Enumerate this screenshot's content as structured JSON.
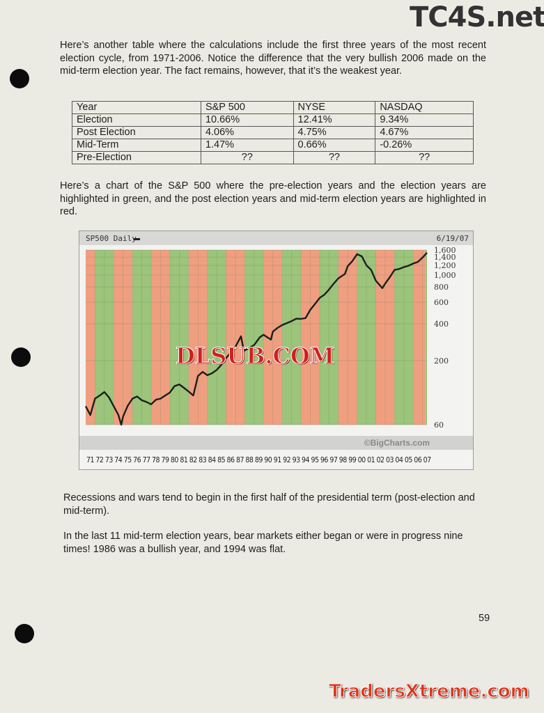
{
  "intro_paragraph": "Here’s another table where the calculations include the first three years of the most recent election cycle, from 1971-2006.  Notice the difference that the very bullish 2006 made on the mid-term election year.  The fact remains, however, that it’s the weakest year.",
  "table": {
    "headers": [
      "Year",
      "S&P 500",
      "NYSE",
      "NASDAQ"
    ],
    "rows": [
      [
        "Election",
        "10.66%",
        "12.41%",
        "9.34%"
      ],
      [
        "Post Election",
        "4.06%",
        "4.75%",
        "4.67%"
      ],
      [
        "Mid-Term",
        "1.47%",
        "0.66%",
        "-0.26%"
      ],
      [
        "Pre-Election",
        "??",
        "??",
        "??"
      ]
    ]
  },
  "chart_intro": "Here’s a chart of the S&P 500 where the pre-election years and the election years are highlighted in green, and the post election years and mid-term election years are highlighted in red.",
  "chart_data": {
    "type": "line",
    "title": "SP500 Daily",
    "date_label": "6/19/07",
    "source": "©BigCharts.com",
    "y_scale": "log",
    "ylim": [
      60,
      1600
    ],
    "y_ticks": [
      "1,600",
      "1,400",
      "1,200",
      "1,000",
      "800",
      "600",
      "400",
      "200",
      "60"
    ],
    "y_tick_values": [
      1600,
      1400,
      1200,
      1000,
      800,
      600,
      400,
      200,
      60
    ],
    "x_tick_labels": [
      "71",
      "72",
      "73",
      "74",
      "75",
      "76",
      "77",
      "78",
      "79",
      "80",
      "81",
      "82",
      "83",
      "84",
      "85",
      "86",
      "87",
      "88",
      "89",
      "90",
      "91",
      "92",
      "93",
      "94",
      "95",
      "96",
      "97",
      "98",
      "99",
      "00",
      "01",
      "02",
      "03",
      "04",
      "05",
      "06",
      "07"
    ],
    "xlim": [
      1971,
      2007.47
    ],
    "grid": true,
    "band_colors": {
      "red": "#ef9f7f",
      "green": "#9cc47a"
    },
    "bands": [
      {
        "start": 1971,
        "end": 1972,
        "color": "red"
      },
      {
        "start": 1972,
        "end": 1974,
        "color": "green"
      },
      {
        "start": 1974,
        "end": 1976,
        "color": "red"
      },
      {
        "start": 1976,
        "end": 1978,
        "color": "green"
      },
      {
        "start": 1978,
        "end": 1980,
        "color": "red"
      },
      {
        "start": 1980,
        "end": 1982,
        "color": "green"
      },
      {
        "start": 1982,
        "end": 1984,
        "color": "red"
      },
      {
        "start": 1984,
        "end": 1986,
        "color": "green"
      },
      {
        "start": 1986,
        "end": 1988,
        "color": "red"
      },
      {
        "start": 1988,
        "end": 1990,
        "color": "green"
      },
      {
        "start": 1990,
        "end": 1992,
        "color": "red"
      },
      {
        "start": 1992,
        "end": 1994,
        "color": "green"
      },
      {
        "start": 1994,
        "end": 1996,
        "color": "red"
      },
      {
        "start": 1996,
        "end": 1998,
        "color": "green"
      },
      {
        "start": 1998,
        "end": 2000,
        "color": "red"
      },
      {
        "start": 2000,
        "end": 2002,
        "color": "green"
      },
      {
        "start": 2002,
        "end": 2004,
        "color": "red"
      },
      {
        "start": 2004,
        "end": 2006,
        "color": "green"
      },
      {
        "start": 2006,
        "end": 2007.3,
        "color": "red"
      },
      {
        "start": 2007.3,
        "end": 2007.47,
        "color": "green"
      }
    ],
    "series": [
      {
        "x": [
          1971,
          1971.5,
          1972,
          1972.5,
          1973,
          1973.5,
          1974,
          1974.5,
          1974.8,
          1975,
          1975.5,
          1976,
          1976.5,
          1977,
          1977.5,
          1978,
          1978.5,
          1979,
          1979.5,
          1980,
          1980.5,
          1981,
          1981.5,
          1982,
          1982.5,
          1983,
          1983.5,
          1984,
          1984.5,
          1985,
          1985.5,
          1986,
          1986.5,
          1987,
          1987.6,
          1987.9,
          1988.5,
          1989,
          1989.6,
          1990,
          1990.8,
          1991,
          1991.5,
          1992,
          1992.5,
          1993,
          1993.5,
          1994,
          1994.5,
          1995,
          1995.5,
          1996,
          1996.5,
          1997,
          1997.5,
          1998,
          1998.7,
          1999,
          1999.5,
          2000,
          2000.5,
          2001,
          2001.5,
          2002,
          2002.7,
          2003,
          2003.5,
          2004,
          2004.5,
          2005,
          2005.5,
          2006,
          2006.5,
          2007,
          2007.47
        ],
        "y": [
          85,
          72,
          98,
          104,
          111,
          100,
          85,
          72,
          60,
          70,
          86,
          98,
          102,
          95,
          92,
          88,
          96,
          98,
          104,
          110,
          124,
          128,
          120,
          112,
          104,
          150,
          162,
          152,
          158,
          168,
          185,
          210,
          232,
          260,
          316,
          240,
          255,
          268,
          310,
          325,
          297,
          345,
          370,
          390,
          405,
          420,
          440,
          438,
          445,
          520,
          580,
          650,
          690,
          760,
          850,
          940,
          1020,
          1180,
          1300,
          1480,
          1420,
          1200,
          1100,
          900,
          780,
          850,
          960,
          1100,
          1120,
          1160,
          1190,
          1240,
          1280,
          1390,
          1520
        ]
      }
    ]
  },
  "paragraph_recessions": "Recessions and wars tend to begin in the first half of the presidential term (post-election and mid-term).",
  "paragraph_midterm": "In the last 11 mid-term election years, bear markets either began or were in progress nine times!  1986 was a bullish year, and 1994 was flat.",
  "page_number": "59",
  "watermarks": {
    "top": "TC4S.net",
    "middle": "DLSUB.COM",
    "bottom": "TradersXtreme.com"
  }
}
